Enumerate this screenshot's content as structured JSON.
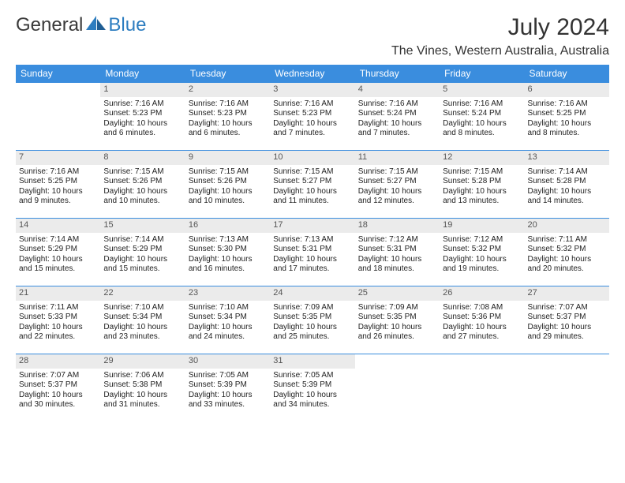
{
  "logo": {
    "general": "General",
    "blue": "Blue"
  },
  "title": "July 2024",
  "location": "The Vines, Western Australia, Australia",
  "colors": {
    "header_bg": "#3a8dde",
    "header_text": "#ffffff",
    "daynum_bg": "#ebebeb",
    "daynum_text": "#555555",
    "rule": "#3a8dde",
    "body_text": "#222222",
    "logo_blue": "#2d7dc0"
  },
  "day_names": [
    "Sunday",
    "Monday",
    "Tuesday",
    "Wednesday",
    "Thursday",
    "Friday",
    "Saturday"
  ],
  "weeks": [
    [
      {
        "n": "",
        "lines": []
      },
      {
        "n": "1",
        "lines": [
          "Sunrise: 7:16 AM",
          "Sunset: 5:23 PM",
          "Daylight: 10 hours and 6 minutes."
        ]
      },
      {
        "n": "2",
        "lines": [
          "Sunrise: 7:16 AM",
          "Sunset: 5:23 PM",
          "Daylight: 10 hours and 6 minutes."
        ]
      },
      {
        "n": "3",
        "lines": [
          "Sunrise: 7:16 AM",
          "Sunset: 5:23 PM",
          "Daylight: 10 hours and 7 minutes."
        ]
      },
      {
        "n": "4",
        "lines": [
          "Sunrise: 7:16 AM",
          "Sunset: 5:24 PM",
          "Daylight: 10 hours and 7 minutes."
        ]
      },
      {
        "n": "5",
        "lines": [
          "Sunrise: 7:16 AM",
          "Sunset: 5:24 PM",
          "Daylight: 10 hours and 8 minutes."
        ]
      },
      {
        "n": "6",
        "lines": [
          "Sunrise: 7:16 AM",
          "Sunset: 5:25 PM",
          "Daylight: 10 hours and 8 minutes."
        ]
      }
    ],
    [
      {
        "n": "7",
        "lines": [
          "Sunrise: 7:16 AM",
          "Sunset: 5:25 PM",
          "Daylight: 10 hours and 9 minutes."
        ]
      },
      {
        "n": "8",
        "lines": [
          "Sunrise: 7:15 AM",
          "Sunset: 5:26 PM",
          "Daylight: 10 hours and 10 minutes."
        ]
      },
      {
        "n": "9",
        "lines": [
          "Sunrise: 7:15 AM",
          "Sunset: 5:26 PM",
          "Daylight: 10 hours and 10 minutes."
        ]
      },
      {
        "n": "10",
        "lines": [
          "Sunrise: 7:15 AM",
          "Sunset: 5:27 PM",
          "Daylight: 10 hours and 11 minutes."
        ]
      },
      {
        "n": "11",
        "lines": [
          "Sunrise: 7:15 AM",
          "Sunset: 5:27 PM",
          "Daylight: 10 hours and 12 minutes."
        ]
      },
      {
        "n": "12",
        "lines": [
          "Sunrise: 7:15 AM",
          "Sunset: 5:28 PM",
          "Daylight: 10 hours and 13 minutes."
        ]
      },
      {
        "n": "13",
        "lines": [
          "Sunrise: 7:14 AM",
          "Sunset: 5:28 PM",
          "Daylight: 10 hours and 14 minutes."
        ]
      }
    ],
    [
      {
        "n": "14",
        "lines": [
          "Sunrise: 7:14 AM",
          "Sunset: 5:29 PM",
          "Daylight: 10 hours and 15 minutes."
        ]
      },
      {
        "n": "15",
        "lines": [
          "Sunrise: 7:14 AM",
          "Sunset: 5:29 PM",
          "Daylight: 10 hours and 15 minutes."
        ]
      },
      {
        "n": "16",
        "lines": [
          "Sunrise: 7:13 AM",
          "Sunset: 5:30 PM",
          "Daylight: 10 hours and 16 minutes."
        ]
      },
      {
        "n": "17",
        "lines": [
          "Sunrise: 7:13 AM",
          "Sunset: 5:31 PM",
          "Daylight: 10 hours and 17 minutes."
        ]
      },
      {
        "n": "18",
        "lines": [
          "Sunrise: 7:12 AM",
          "Sunset: 5:31 PM",
          "Daylight: 10 hours and 18 minutes."
        ]
      },
      {
        "n": "19",
        "lines": [
          "Sunrise: 7:12 AM",
          "Sunset: 5:32 PM",
          "Daylight: 10 hours and 19 minutes."
        ]
      },
      {
        "n": "20",
        "lines": [
          "Sunrise: 7:11 AM",
          "Sunset: 5:32 PM",
          "Daylight: 10 hours and 20 minutes."
        ]
      }
    ],
    [
      {
        "n": "21",
        "lines": [
          "Sunrise: 7:11 AM",
          "Sunset: 5:33 PM",
          "Daylight: 10 hours and 22 minutes."
        ]
      },
      {
        "n": "22",
        "lines": [
          "Sunrise: 7:10 AM",
          "Sunset: 5:34 PM",
          "Daylight: 10 hours and 23 minutes."
        ]
      },
      {
        "n": "23",
        "lines": [
          "Sunrise: 7:10 AM",
          "Sunset: 5:34 PM",
          "Daylight: 10 hours and 24 minutes."
        ]
      },
      {
        "n": "24",
        "lines": [
          "Sunrise: 7:09 AM",
          "Sunset: 5:35 PM",
          "Daylight: 10 hours and 25 minutes."
        ]
      },
      {
        "n": "25",
        "lines": [
          "Sunrise: 7:09 AM",
          "Sunset: 5:35 PM",
          "Daylight: 10 hours and 26 minutes."
        ]
      },
      {
        "n": "26",
        "lines": [
          "Sunrise: 7:08 AM",
          "Sunset: 5:36 PM",
          "Daylight: 10 hours and 27 minutes."
        ]
      },
      {
        "n": "27",
        "lines": [
          "Sunrise: 7:07 AM",
          "Sunset: 5:37 PM",
          "Daylight: 10 hours and 29 minutes."
        ]
      }
    ],
    [
      {
        "n": "28",
        "lines": [
          "Sunrise: 7:07 AM",
          "Sunset: 5:37 PM",
          "Daylight: 10 hours and 30 minutes."
        ]
      },
      {
        "n": "29",
        "lines": [
          "Sunrise: 7:06 AM",
          "Sunset: 5:38 PM",
          "Daylight: 10 hours and 31 minutes."
        ]
      },
      {
        "n": "30",
        "lines": [
          "Sunrise: 7:05 AM",
          "Sunset: 5:39 PM",
          "Daylight: 10 hours and 33 minutes."
        ]
      },
      {
        "n": "31",
        "lines": [
          "Sunrise: 7:05 AM",
          "Sunset: 5:39 PM",
          "Daylight: 10 hours and 34 minutes."
        ]
      },
      {
        "n": "",
        "lines": []
      },
      {
        "n": "",
        "lines": []
      },
      {
        "n": "",
        "lines": []
      }
    ]
  ]
}
